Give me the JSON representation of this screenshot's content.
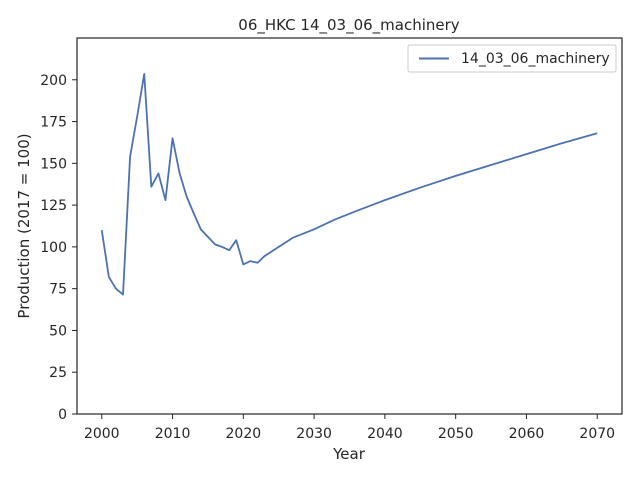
{
  "chart_data": {
    "type": "line",
    "title": "06_HKC 14_03_06_machinery",
    "xlabel": "Year",
    "ylabel": "Production (2017 = 100)",
    "xlim": [
      1996.5,
      2073.5
    ],
    "ylim": [
      0,
      225
    ],
    "xticks": [
      2000,
      2010,
      2020,
      2030,
      2040,
      2050,
      2060,
      2070
    ],
    "yticks": [
      0,
      25,
      50,
      75,
      100,
      125,
      150,
      175,
      200
    ],
    "legend_position": "top-right",
    "grid": false,
    "series": [
      {
        "name": "14_03_06_machinery",
        "color": "#4c72b0",
        "x": [
          2000,
          2001,
          2002,
          2003,
          2004,
          2005,
          2006,
          2007,
          2008,
          2009,
          2010,
          2011,
          2012,
          2013,
          2014,
          2015,
          2016,
          2017,
          2018,
          2019,
          2020,
          2021,
          2022,
          2023,
          2025,
          2027,
          2030,
          2033,
          2036,
          2040,
          2045,
          2050,
          2055,
          2060,
          2065,
          2070
        ],
        "y": [
          110,
          82,
          75,
          71.5,
          154,
          178,
          203.5,
          136,
          144,
          128,
          165,
          144,
          130,
          120,
          110.5,
          106,
          101.5,
          100,
          98,
          104,
          89.5,
          91.5,
          90.5,
          94.5,
          100,
          105.5,
          110.5,
          116.5,
          121.5,
          128,
          135.5,
          142.5,
          149,
          155.5,
          162,
          168
        ]
      }
    ]
  }
}
